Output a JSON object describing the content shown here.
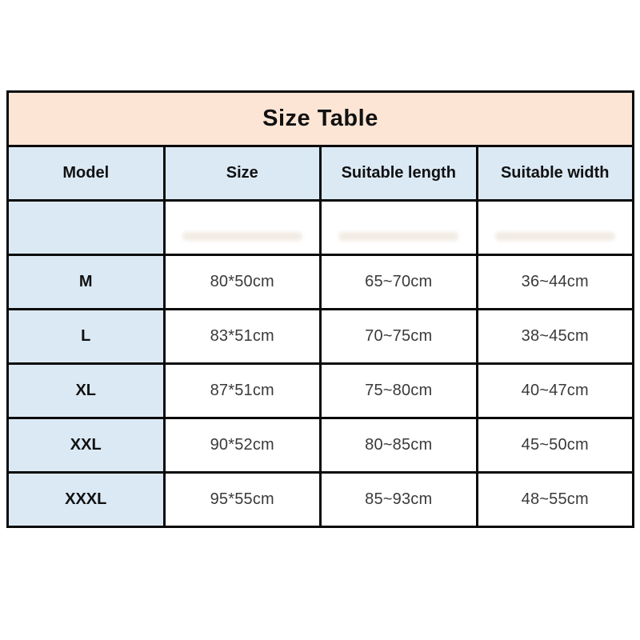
{
  "title": "Size Table",
  "colors": {
    "title_bg": "#fce5d5",
    "header_bg": "#dbe9f5",
    "model_column_bg": "#dbe9f5",
    "cell_bg": "#ffffff",
    "border": "#0a0a0a",
    "heading_text": "#111111",
    "data_text": "#3a3a3a"
  },
  "table": {
    "columns": [
      "Model",
      "Size",
      "Suitable length",
      "Suitable width"
    ],
    "rows": [
      {
        "model": "",
        "size": "",
        "length": "",
        "width": ""
      },
      {
        "model": "M",
        "size": "80*50cm",
        "length": "65~70cm",
        "width": "36~44cm"
      },
      {
        "model": "L",
        "size": "83*51cm",
        "length": "70~75cm",
        "width": "38~45cm"
      },
      {
        "model": "XL",
        "size": "87*51cm",
        "length": "75~80cm",
        "width": "40~47cm"
      },
      {
        "model": "XXL",
        "size": "90*52cm",
        "length": "80~85cm",
        "width": "45~50cm"
      },
      {
        "model": "XXXL",
        "size": "95*55cm",
        "length": "85~93cm",
        "width": "48~55cm"
      }
    ]
  }
}
